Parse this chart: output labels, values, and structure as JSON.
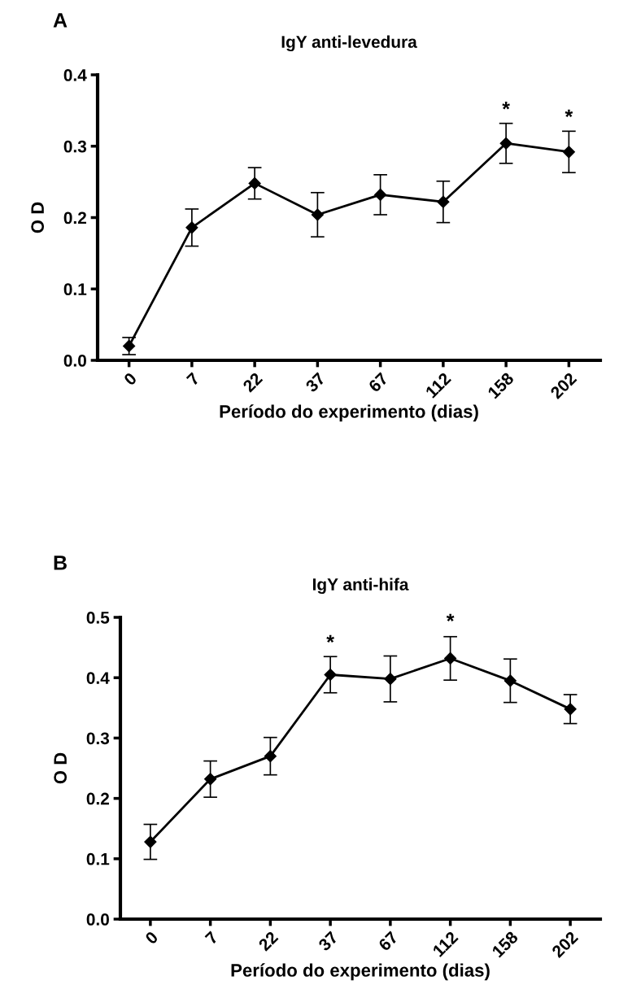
{
  "chart_data": [
    {
      "type": "line",
      "title": "IgY anti-levedura",
      "xlabel": "Período do experimento (dias)",
      "ylabel": "O D",
      "categories": [
        "0",
        "7",
        "22",
        "37",
        "67",
        "112",
        "158",
        "202"
      ],
      "series": [
        {
          "color": "#000000",
          "values": [
            0.02,
            0.186,
            0.248,
            0.204,
            0.232,
            0.222,
            0.304,
            0.292
          ],
          "errors": [
            0.012,
            0.026,
            0.022,
            0.031,
            0.028,
            0.029,
            0.028,
            0.029
          ]
        }
      ],
      "ylim": [
        0.0,
        0.4
      ],
      "yticks": [
        {
          "value": 0.0,
          "label": "0.0"
        },
        0.1,
        0.2,
        0.3,
        0.4
      ],
      "marker": "diamond",
      "line_style": "solid",
      "grid": false,
      "annotations": [
        "A",
        {
          "text": "*",
          "x": "158",
          "y": 0.332
        },
        {
          "text": "*",
          "x": "202",
          "y": 0.321
        }
      ]
    },
    {
      "type": "line",
      "title": "IgY anti-hifa",
      "xlabel": "Período do experimento (dias)",
      "ylabel": "O D",
      "categories": [
        "0",
        "7",
        "22",
        "37",
        "67",
        "112",
        "158",
        "202"
      ],
      "series": [
        {
          "color": "#000000",
          "values": [
            0.128,
            0.232,
            0.27,
            0.405,
            0.398,
            0.432,
            0.395,
            0.348
          ],
          "errors": [
            0.029,
            0.03,
            0.031,
            0.03,
            0.038,
            0.036,
            0.036,
            0.024
          ]
        }
      ],
      "ylim": [
        0.0,
        0.5
      ],
      "yticks": [
        {
          "value": 0.0,
          "label": "0.0"
        },
        0.1,
        0.2,
        0.3,
        0.4,
        0.5
      ],
      "marker": "diamond",
      "line_style": "solid",
      "grid": false,
      "annotations": [
        "B",
        {
          "text": "*",
          "x": "37",
          "y": 0.435
        },
        {
          "text": "*",
          "x": "112",
          "y": 0.47
        }
      ]
    }
  ]
}
